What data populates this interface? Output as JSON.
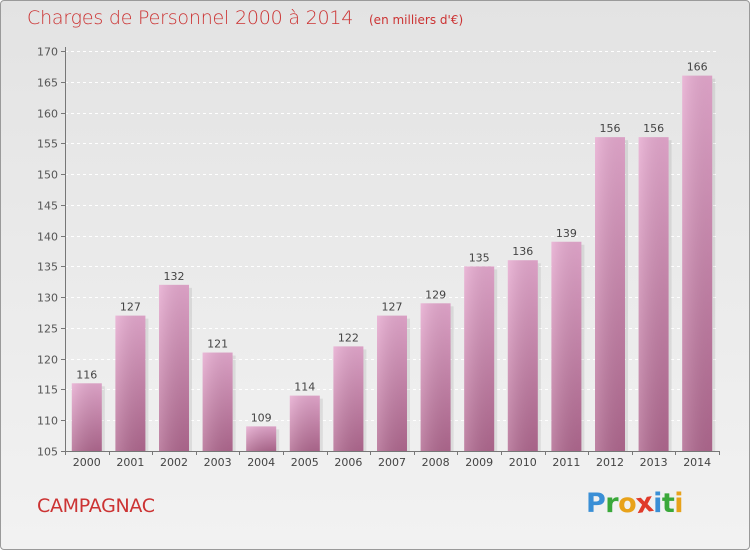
{
  "page": {
    "title": "Charges de Personnel 2000 à 2014",
    "subtitle": "(en milliers d'€)",
    "commune": "CAMPAGNAC",
    "logo": {
      "text": "Proxiti",
      "letters": [
        {
          "ch": "P",
          "color": "#3a8fd6"
        },
        {
          "ch": "r",
          "color": "#3aa83a"
        },
        {
          "ch": "o",
          "color": "#e8a21a"
        },
        {
          "ch": "x",
          "color": "#e03a2a"
        },
        {
          "ch": "i",
          "color": "#3a8fd6"
        },
        {
          "ch": "t",
          "color": "#3aa83a"
        },
        {
          "ch": "i",
          "color": "#e8a21a"
        }
      ]
    }
  },
  "chart_data": {
    "type": "bar",
    "title": "Charges de Personnel 2000 à 2014",
    "subtitle": "(en milliers d'€)",
    "xlabel": "",
    "ylabel": "",
    "categories": [
      "2000",
      "2001",
      "2002",
      "2003",
      "2004",
      "2005",
      "2006",
      "2007",
      "2008",
      "2009",
      "2010",
      "2011",
      "2012",
      "2013",
      "2014"
    ],
    "values": [
      116,
      127,
      132,
      121,
      109,
      114,
      122,
      127,
      129,
      135,
      136,
      139,
      156,
      156,
      166
    ],
    "ylim": [
      105,
      170
    ],
    "yticks": [
      105,
      110,
      115,
      120,
      125,
      130,
      135,
      140,
      145,
      150,
      155,
      160,
      165,
      170
    ],
    "grid": true,
    "bar_color_top": "#e6a9cf",
    "bar_color_bottom": "#b0688f"
  }
}
